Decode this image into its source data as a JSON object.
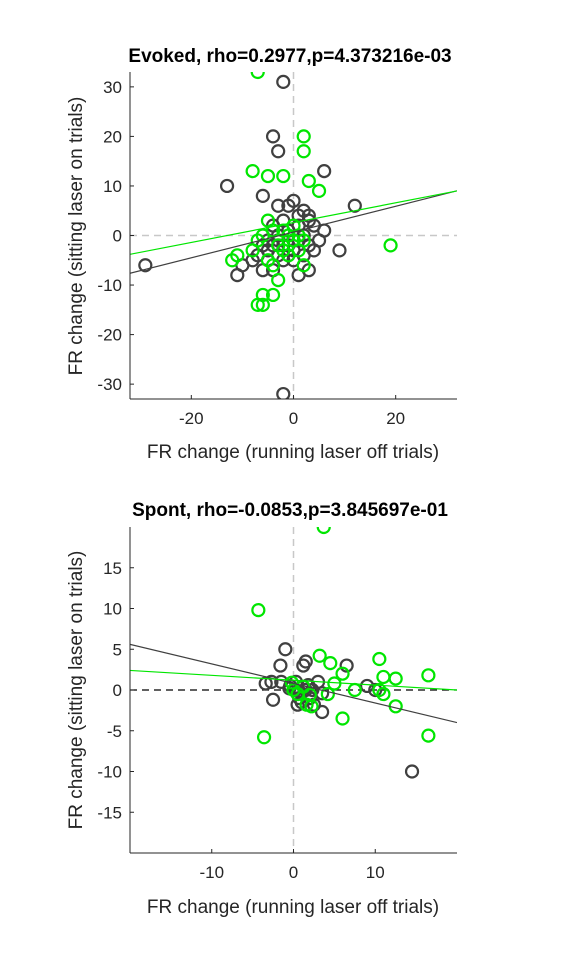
{
  "colors": {
    "gray": "#404040",
    "green": "#00e600",
    "axis": "#262626",
    "refline": "#c8c8c8"
  },
  "chart_data": [
    {
      "type": "scatter",
      "title": "Evoked, rho=0.2977,p=4.373216e-03",
      "xlabel": "FR change (running laser off trials)",
      "ylabel": "FR change (sitting laser on trials)",
      "xlim": [
        -32,
        32
      ],
      "ylim": [
        -33,
        33
      ],
      "xticks": [
        -20,
        0,
        20
      ],
      "yticks": [
        -30,
        -20,
        -10,
        0,
        10,
        20,
        30
      ],
      "xtick_labels": [
        "-20",
        "0",
        "20"
      ],
      "ytick_labels": [
        "-30",
        "-20",
        "-10",
        "0",
        "10",
        "20",
        "30"
      ],
      "zero_lines": "dashed-light",
      "grid": false,
      "series": [
        {
          "color": "#404040",
          "points": [
            [
              -29,
              -6
            ],
            [
              -2,
              31
            ],
            [
              -13,
              10
            ],
            [
              -4,
              20
            ],
            [
              -3,
              17
            ],
            [
              6,
              13
            ],
            [
              -6,
              8
            ],
            [
              -3,
              6
            ],
            [
              -1,
              6
            ],
            [
              0,
              7
            ],
            [
              1,
              4
            ],
            [
              2,
              5
            ],
            [
              3,
              4
            ],
            [
              4,
              2
            ],
            [
              12,
              6
            ],
            [
              6,
              1
            ],
            [
              9,
              -3
            ],
            [
              -4,
              2
            ],
            [
              -3,
              0
            ],
            [
              -5,
              -1
            ],
            [
              -6,
              -2
            ],
            [
              -2,
              -2
            ],
            [
              -7,
              -4
            ],
            [
              -8,
              -5
            ],
            [
              -10,
              -6
            ],
            [
              -11,
              -8
            ],
            [
              -6,
              -7
            ],
            [
              -4,
              -7
            ],
            [
              -5,
              -3
            ],
            [
              -3,
              -4
            ],
            [
              0,
              -5
            ],
            [
              2,
              -4
            ],
            [
              3,
              -7
            ],
            [
              1,
              -8
            ],
            [
              -2,
              -5
            ],
            [
              -1,
              -2
            ],
            [
              0,
              -1
            ],
            [
              1,
              -1
            ],
            [
              2,
              0
            ],
            [
              3,
              -2
            ],
            [
              4,
              -3
            ],
            [
              5,
              -1
            ],
            [
              1,
              2
            ],
            [
              3,
              3
            ],
            [
              -2,
              3
            ],
            [
              -4,
              -2
            ],
            [
              -3,
              -1
            ],
            [
              -2,
              -32
            ],
            [
              -1,
              1
            ],
            [
              0,
              -3
            ]
          ]
        },
        {
          "color": "#00e600",
          "points": [
            [
              -7,
              33
            ],
            [
              2,
              20
            ],
            [
              2,
              17
            ],
            [
              -8,
              13
            ],
            [
              -5,
              12
            ],
            [
              -2,
              12
            ],
            [
              3,
              11
            ],
            [
              5,
              9
            ],
            [
              19,
              -2
            ],
            [
              -5,
              3
            ],
            [
              -4,
              1
            ],
            [
              -6,
              0
            ],
            [
              -7,
              -1
            ],
            [
              -3,
              -2
            ],
            [
              -2,
              -3
            ],
            [
              -5,
              -5
            ],
            [
              -4,
              -6
            ],
            [
              -3,
              -9
            ],
            [
              -4,
              -12
            ],
            [
              -6,
              -12
            ],
            [
              -7,
              -14
            ],
            [
              -6,
              -14
            ],
            [
              -8,
              -3
            ],
            [
              -11,
              -4
            ],
            [
              -12,
              -5
            ],
            [
              -1,
              -4
            ],
            [
              1,
              -3
            ],
            [
              2,
              -6
            ],
            [
              0,
              2
            ],
            [
              1,
              0
            ],
            [
              2,
              -1
            ],
            [
              -2,
              1
            ],
            [
              -1,
              0
            ],
            [
              0,
              -1
            ]
          ]
        }
      ],
      "fit_lines": [
        {
          "color": "#404040",
          "slope": 0.26,
          "intercept": 0.7
        },
        {
          "color": "#00e600",
          "slope": 0.2,
          "intercept": 2.6
        }
      ]
    },
    {
      "type": "scatter",
      "title": "Spont,  rho=-0.0853,p=3.845697e-01",
      "xlabel": "FR change (running laser off trials)",
      "ylabel": "FR change (sitting laser on trials)",
      "xlim": [
        -20,
        20
      ],
      "ylim": [
        -20,
        20
      ],
      "xticks": [
        -10,
        0,
        10
      ],
      "yticks": [
        -15,
        -10,
        -5,
        0,
        5,
        10,
        15
      ],
      "xtick_labels": [
        "-10",
        "0",
        "10"
      ],
      "ytick_labels": [
        "-15",
        "-10",
        "-5",
        "0",
        "5",
        "10",
        "15"
      ],
      "zero_lines": "x-dashed-light, y-dashed-black",
      "grid": false,
      "series": [
        {
          "color": "#404040",
          "points": [
            [
              -1,
              5
            ],
            [
              1.5,
              3.5
            ],
            [
              1.2,
              3
            ],
            [
              -1.6,
              3
            ],
            [
              6.5,
              3
            ],
            [
              3,
              1
            ],
            [
              -2.7,
              1
            ],
            [
              -3.4,
              0.8
            ],
            [
              -1.5,
              1
            ],
            [
              -0.4,
              0.5
            ],
            [
              0.3,
              1
            ],
            [
              1.5,
              0
            ],
            [
              2.3,
              0
            ],
            [
              3.5,
              -0.4
            ],
            [
              -2.5,
              -1.2
            ],
            [
              0.5,
              -1.8
            ],
            [
              1,
              -1.5
            ],
            [
              2,
              -1
            ],
            [
              3.5,
              -2.7
            ],
            [
              2.5,
              -1.8
            ],
            [
              9,
              0.5
            ],
            [
              10,
              0
            ],
            [
              14.5,
              -10
            ],
            [
              -0.5,
              0.2
            ],
            [
              0.8,
              -0.3
            ],
            [
              1.8,
              0.6
            ],
            [
              0.2,
              0
            ],
            [
              0.7,
              -1
            ]
          ]
        },
        {
          "color": "#00e600",
          "points": [
            [
              3.7,
              20
            ],
            [
              -4.3,
              9.8
            ],
            [
              -3.6,
              -5.8
            ],
            [
              3.2,
              4.2
            ],
            [
              10.5,
              3.8
            ],
            [
              4.5,
              3.3
            ],
            [
              6,
              2
            ],
            [
              16.5,
              1.8
            ],
            [
              11,
              1.6
            ],
            [
              12.5,
              1.4
            ],
            [
              12.5,
              -2
            ],
            [
              16.5,
              -5.6
            ],
            [
              6,
              -3.5
            ],
            [
              7.5,
              0
            ],
            [
              10.5,
              0
            ],
            [
              11,
              -0.5
            ],
            [
              0,
              0
            ],
            [
              0.5,
              -0.5
            ],
            [
              1.2,
              0.4
            ],
            [
              2,
              -0.6
            ],
            [
              -0.2,
              0.9
            ],
            [
              1.6,
              -1.8
            ],
            [
              2.2,
              -2
            ],
            [
              5,
              0.8
            ],
            [
              4.2,
              -0.5
            ]
          ]
        }
      ],
      "fit_lines": [
        {
          "color": "#404040",
          "slope": -0.24,
          "intercept": 0.8
        },
        {
          "color": "#00e600",
          "slope": -0.06,
          "intercept": 1.2
        }
      ]
    }
  ]
}
